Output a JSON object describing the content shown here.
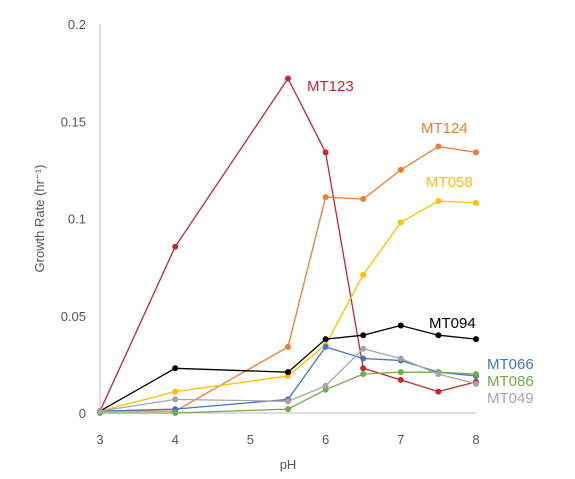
{
  "chart_data": {
    "type": "line",
    "title": "",
    "xlabel": "pH",
    "ylabel": "Growth Rate (hr⁻¹)",
    "xlim": [
      3,
      8
    ],
    "ylim": [
      0,
      0.2
    ],
    "xticks": [
      "3",
      "4",
      "5",
      "6",
      "7",
      "8"
    ],
    "yticks": [
      "0",
      "0.05",
      "0.1",
      "0.15",
      "0.2"
    ],
    "grid": false,
    "legend": "labels at line ends",
    "series": [
      {
        "name": "MT123",
        "color": "#c0282d",
        "x": [
          3,
          4,
          5.5,
          6,
          6.5,
          7,
          7.5,
          8
        ],
        "y": [
          0.001,
          0.0855,
          0.172,
          0.134,
          0.023,
          0.017,
          0.011,
          0.016
        ]
      },
      {
        "name": "MT124",
        "color": "#ed7d31",
        "x": [
          3,
          4,
          5.5,
          6,
          6.5,
          7,
          7.5,
          8
        ],
        "y": [
          0.001,
          0.001,
          0.034,
          0.111,
          0.11,
          0.125,
          0.137,
          0.134
        ]
      },
      {
        "name": "MT058",
        "color": "#ffc000",
        "x": [
          3,
          4,
          5.5,
          6,
          6.5,
          7,
          7.5,
          8
        ],
        "y": [
          0.001,
          0.011,
          0.019,
          0.035,
          0.071,
          0.098,
          0.109,
          0.108
        ]
      },
      {
        "name": "MT094",
        "color": "#000000",
        "x": [
          3,
          4,
          5.5,
          6,
          6.5,
          7,
          7.5,
          8
        ],
        "y": [
          0.001,
          0.023,
          0.021,
          0.038,
          0.04,
          0.045,
          0.04,
          0.038
        ]
      },
      {
        "name": "MT066",
        "color": "#4472c4",
        "x": [
          3,
          4,
          5.5,
          6,
          6.5,
          7,
          7.5,
          8
        ],
        "y": [
          0.001,
          0.002,
          0.007,
          0.034,
          0.028,
          0.027,
          0.021,
          0.019
        ]
      },
      {
        "name": "MT086",
        "color": "#70ad47",
        "x": [
          3,
          4,
          5.5,
          6,
          6.5,
          7,
          7.5,
          8
        ],
        "y": [
          0,
          0,
          0.002,
          0.012,
          0.02,
          0.021,
          0.021,
          0.02
        ]
      },
      {
        "name": "MT049",
        "color": "#a5a5a5",
        "x": [
          3,
          4,
          5.5,
          6,
          6.5,
          7,
          7.5,
          8
        ],
        "y": [
          0.001,
          0.007,
          0.006,
          0.014,
          0.033,
          0.028,
          0.02,
          0.015
        ]
      }
    ]
  }
}
